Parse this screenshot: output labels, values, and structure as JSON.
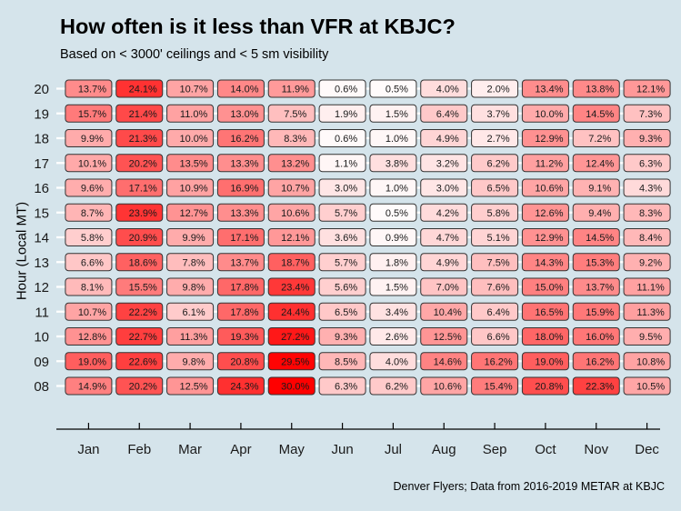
{
  "chart_data": {
    "type": "heatmap",
    "title": "How often is it less than VFR at KBJC?",
    "subtitle": "Based on < 3000' ceilings and < 5 sm visibility",
    "xlabel": "",
    "ylabel": "Hour (Local MT)",
    "caption": "Denver Flyers; Data from 2016-2019 METAR at KBJC",
    "x_categories": [
      "Jan",
      "Feb",
      "Mar",
      "Apr",
      "May",
      "Jun",
      "Jul",
      "Aug",
      "Sep",
      "Oct",
      "Nov",
      "Dec"
    ],
    "y_categories": [
      "20",
      "19",
      "18",
      "17",
      "16",
      "15",
      "14",
      "13",
      "12",
      "11",
      "10",
      "09",
      "08"
    ],
    "value_unit": "%",
    "color_scale": {
      "low": "#ffffff",
      "high": "#ff0000",
      "domain": [
        0,
        30
      ]
    },
    "grid": true,
    "legend": "none",
    "values": [
      [
        13.7,
        24.1,
        10.7,
        14.0,
        11.9,
        0.6,
        0.5,
        4.0,
        2.0,
        13.4,
        13.8,
        12.1
      ],
      [
        15.7,
        21.4,
        11.0,
        13.0,
        7.5,
        1.9,
        1.5,
        6.4,
        3.7,
        10.0,
        14.5,
        7.3
      ],
      [
        9.9,
        21.3,
        10.0,
        16.2,
        8.3,
        0.6,
        1.0,
        4.9,
        2.7,
        12.9,
        7.2,
        9.3
      ],
      [
        10.1,
        20.2,
        13.5,
        13.3,
        13.2,
        1.1,
        3.8,
        3.2,
        6.2,
        11.2,
        12.4,
        6.3
      ],
      [
        9.6,
        17.1,
        10.9,
        16.9,
        10.7,
        3.0,
        1.0,
        3.0,
        6.5,
        10.6,
        9.1,
        4.3
      ],
      [
        8.7,
        23.9,
        12.7,
        13.3,
        10.6,
        5.7,
        0.5,
        4.2,
        5.8,
        12.6,
        9.4,
        8.3
      ],
      [
        5.8,
        20.9,
        9.9,
        17.1,
        12.1,
        3.6,
        0.9,
        4.7,
        5.1,
        12.9,
        14.5,
        8.4
      ],
      [
        6.6,
        18.6,
        7.8,
        13.7,
        18.7,
        5.7,
        1.8,
        4.9,
        7.5,
        14.3,
        15.3,
        9.2
      ],
      [
        8.1,
        15.5,
        9.8,
        17.8,
        23.4,
        5.6,
        1.5,
        7.0,
        7.6,
        15.0,
        13.7,
        11.1
      ],
      [
        10.7,
        22.2,
        6.1,
        17.8,
        24.4,
        6.5,
        3.4,
        10.4,
        6.4,
        16.5,
        15.9,
        11.3
      ],
      [
        12.8,
        22.7,
        11.3,
        19.3,
        27.2,
        9.3,
        2.6,
        12.5,
        6.6,
        18.0,
        16.0,
        9.5
      ],
      [
        19.0,
        22.6,
        9.8,
        20.8,
        29.5,
        8.5,
        4.0,
        14.6,
        16.2,
        19.0,
        16.2,
        10.8
      ],
      [
        14.9,
        20.2,
        12.5,
        24.3,
        30.0,
        6.3,
        6.2,
        10.6,
        15.4,
        20.8,
        22.3,
        10.5
      ]
    ]
  }
}
